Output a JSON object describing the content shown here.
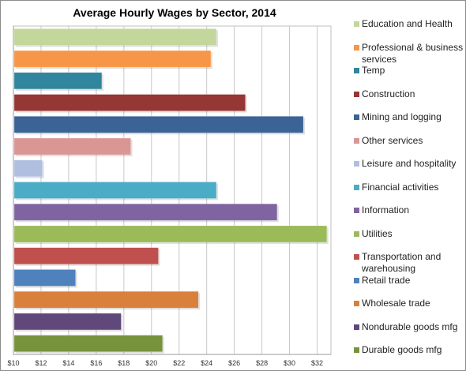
{
  "chart_data": {
    "type": "bar",
    "orientation": "horizontal",
    "title": "Average Hourly Wages by Sector, 2014",
    "xlabel": "",
    "ylabel": "",
    "xlim": [
      10,
      33
    ],
    "x_ticks": [
      10,
      12,
      14,
      16,
      18,
      20,
      22,
      24,
      26,
      28,
      30,
      32
    ],
    "x_tick_labels": [
      "$10",
      "$12",
      "$14",
      "$16",
      "$18",
      "$20",
      "$22",
      "$24",
      "$26",
      "$28",
      "$30",
      "$32"
    ],
    "grid": true,
    "legend_position": "right",
    "categories": [
      "Education and Health",
      "Professional  & business services",
      "Temp",
      "Construction",
      "Mining and logging",
      "Other services",
      "Leisure and hospitality",
      "Financial activities",
      "Information",
      "Utilities",
      "Transportation and warehousing",
      "Retail trade",
      "Wholesale trade",
      "Nondurable goods mfg",
      "Durable goods mfg"
    ],
    "values": [
      24.7,
      24.3,
      16.4,
      26.8,
      31.0,
      18.5,
      12.1,
      24.7,
      29.1,
      32.7,
      20.5,
      14.5,
      23.4,
      17.8,
      20.8
    ],
    "colors": [
      "#c3d69b",
      "#f79646",
      "#31859c",
      "#953735",
      "#3b6396",
      "#d99694",
      "#b0bfe0",
      "#4bacc6",
      "#8064a2",
      "#9bbb59",
      "#c0504d",
      "#4f81bd",
      "#d9803c",
      "#60497a",
      "#77933c"
    ]
  }
}
